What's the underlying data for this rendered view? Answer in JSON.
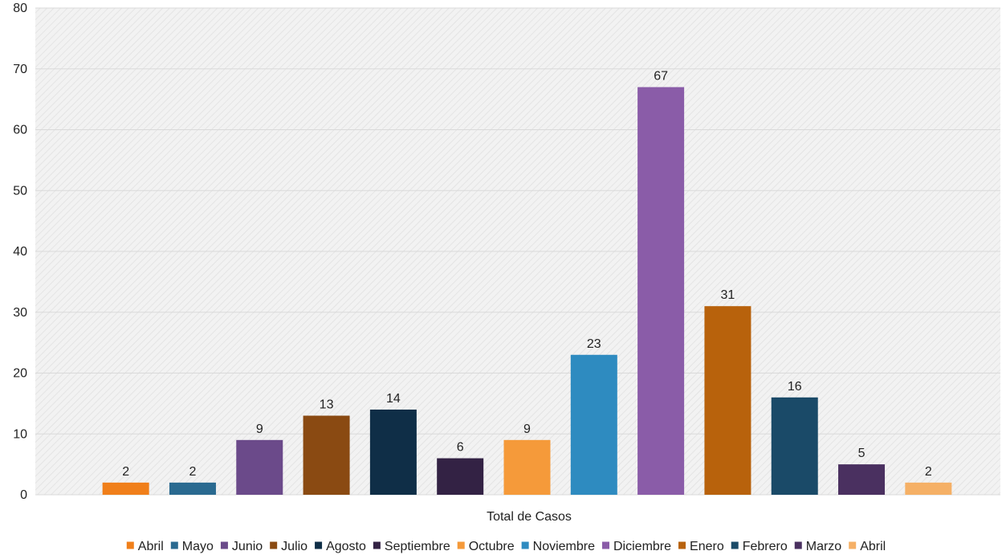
{
  "chart_data": {
    "type": "bar",
    "xlabel": "Total de Casos",
    "ylabel": "",
    "ylim": [
      0,
      80
    ],
    "yticks": [
      0,
      10,
      20,
      30,
      40,
      50,
      60,
      70,
      80
    ],
    "grid": true,
    "legend_position": "bottom",
    "series": [
      {
        "name": "Abril",
        "value": 2,
        "color": "#F07F1A"
      },
      {
        "name": "Mayo",
        "value": 2,
        "color": "#2A6A90"
      },
      {
        "name": "Junio",
        "value": 9,
        "color": "#6B4A8A"
      },
      {
        "name": "Julio",
        "value": 13,
        "color": "#8A4A12"
      },
      {
        "name": "Agosto",
        "value": 14,
        "color": "#0F2E47"
      },
      {
        "name": "Septiembre",
        "value": 6,
        "color": "#332244"
      },
      {
        "name": "Octubre",
        "value": 9,
        "color": "#F59A3A"
      },
      {
        "name": "Noviembre",
        "value": 23,
        "color": "#2E8BC0"
      },
      {
        "name": "Diciembre",
        "value": 67,
        "color": "#8A5CA8"
      },
      {
        "name": "Enero",
        "value": 31,
        "color": "#B8620C"
      },
      {
        "name": "Febrero",
        "value": 16,
        "color": "#1A4A68"
      },
      {
        "name": "Marzo",
        "value": 5,
        "color": "#4A3060"
      },
      {
        "name": "Abril",
        "value": 2,
        "color": "#F5B066"
      }
    ]
  }
}
